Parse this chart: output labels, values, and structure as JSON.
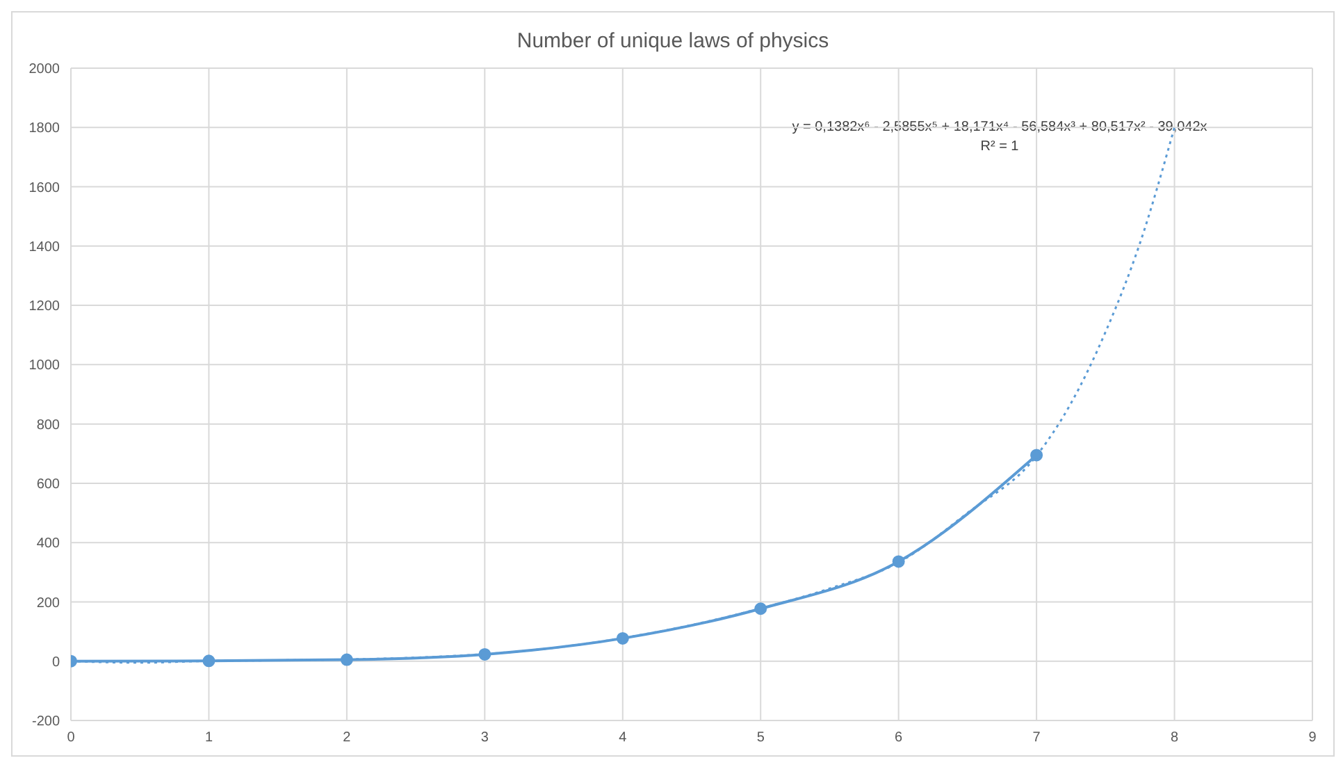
{
  "chart_data": {
    "type": "line",
    "title": "Number of unique laws of physics",
    "series": [
      {
        "color": "#5b9bd5",
        "x": [
          0,
          1,
          2,
          3,
          4,
          5,
          6,
          7
        ],
        "values": [
          0,
          1,
          5,
          23,
          77,
          177,
          336,
          695
        ],
        "marker": "circle",
        "line_style": "solid"
      },
      {
        "type": "line",
        "color": "#5b9bd5",
        "x": [
          0,
          0.5,
          1,
          1.5,
          2,
          2.5,
          3,
          3.5,
          4,
          4.5,
          5,
          5.5,
          6,
          6.5,
          7,
          7.25,
          7.5,
          7.75,
          8
        ],
        "values": [
          0,
          -5,
          1,
          3,
          6,
          12,
          24,
          45,
          78,
          122,
          178,
          245,
          333,
          500,
          693,
          870,
          1110,
          1410,
          1800
        ],
        "marker": "none",
        "line_style": "dotted"
      }
    ],
    "annotations": [
      "y = 0,1382x⁶ - 2,5855x⁵ + 18,171x⁴ - 56,584x³ + 80,517x² - 39,042x",
      "R² = 1"
    ],
    "xlim": [
      0,
      9
    ],
    "xticks": [
      0,
      1,
      2,
      3,
      4,
      5,
      6,
      7,
      8,
      9
    ],
    "ylim": [
      -200,
      2000
    ],
    "yticks": [
      -200,
      0,
      200,
      400,
      600,
      800,
      1000,
      1200,
      1400,
      1600,
      1800,
      2000
    ],
    "grid": true
  }
}
